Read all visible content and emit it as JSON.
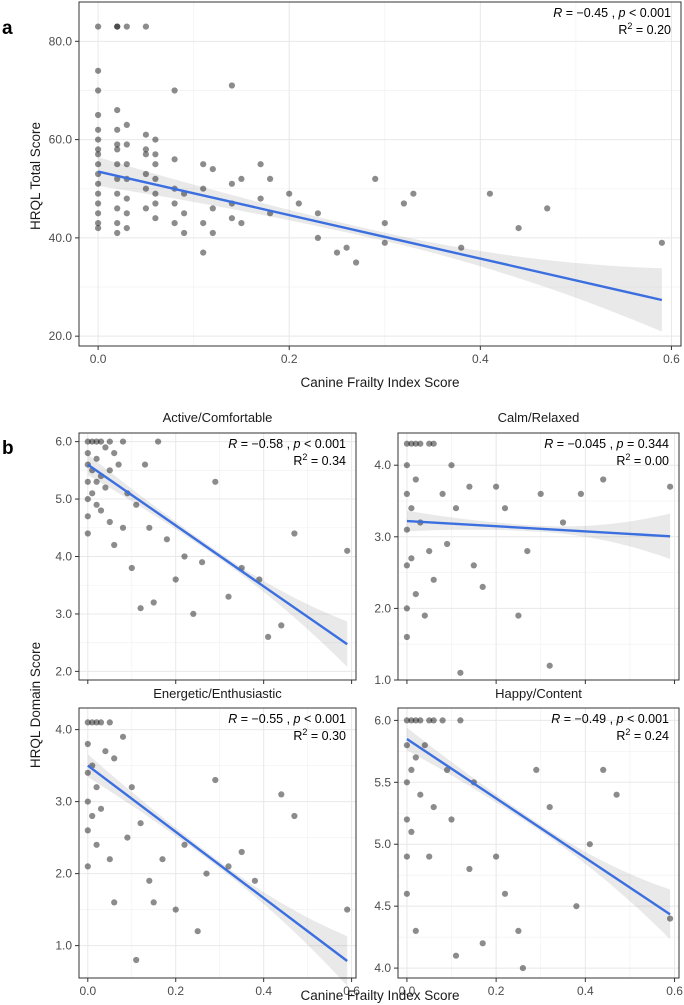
{
  "labels": {
    "panel_a": "a",
    "panel_b": "b"
  },
  "colors": {
    "fit_line": "#3b6fe0",
    "points": "#000000",
    "band": "#999999"
  },
  "chart_data": [
    {
      "id": "a",
      "type": "scatter",
      "title": "",
      "xlabel": "Canine Frailty Index Score",
      "ylabel": "HRQL Total Score",
      "xlim": [
        -0.02,
        0.61
      ],
      "ylim": [
        18,
        88
      ],
      "xticks": [
        0.0,
        0.2,
        0.4,
        0.6
      ],
      "xtick_labels": [
        "0.0",
        "0.2",
        "0.4",
        "0.6"
      ],
      "yticks": [
        20,
        40,
        60,
        80
      ],
      "ytick_labels": [
        "20.0",
        "40.0",
        "60.0",
        "80.0"
      ],
      "stat_r": "R = −0.45 , p < 0.001",
      "stat_r2": "R2 = 0.20",
      "fit": {
        "intercept": 53.5,
        "slope": -44.3,
        "x_range": [
          0.0,
          0.59
        ]
      },
      "x": [
        0,
        0,
        0,
        0,
        0,
        0,
        0,
        0,
        0,
        0,
        0,
        0,
        0,
        0,
        0,
        0,
        0.02,
        0.02,
        0.02,
        0.02,
        0.02,
        0.02,
        0.02,
        0.02,
        0.02,
        0.02,
        0.03,
        0.03,
        0.03,
        0.03,
        0.03,
        0.03,
        0.03,
        0.03,
        0.05,
        0.05,
        0.05,
        0.05,
        0.05,
        0.05,
        0.06,
        0.06,
        0.06,
        0.06,
        0.06,
        0.06,
        0.08,
        0.08,
        0.08,
        0.08,
        0.08,
        0.09,
        0.09,
        0.09,
        0.11,
        0.11,
        0.11,
        0.11,
        0.12,
        0.12,
        0.12,
        0.14,
        0.14,
        0.14,
        0.14,
        0.15,
        0.15,
        0.17,
        0.17,
        0.18,
        0.18,
        0.2,
        0.21,
        0.23,
        0.23,
        0.25,
        0.26,
        0.27,
        0.29,
        0.3,
        0.3,
        0.32,
        0.33,
        0.38,
        0.41,
        0.44,
        0.47,
        0.59,
        0.02,
        0.02,
        0.05,
        0.06
      ],
      "y": [
        83,
        74,
        70,
        65,
        62,
        60,
        58,
        57,
        55,
        53,
        51,
        49,
        47,
        45,
        43,
        42,
        83,
        66,
        62,
        58,
        55,
        52,
        49,
        46,
        43,
        41,
        83,
        63,
        59,
        55,
        52,
        48,
        45,
        42,
        83,
        61,
        57,
        53,
        50,
        46,
        60,
        57,
        55,
        52,
        49,
        47,
        70,
        56,
        50,
        47,
        43,
        49,
        45,
        41,
        55,
        50,
        43,
        37,
        54,
        46,
        41,
        71,
        51,
        47,
        44,
        52,
        43,
        55,
        48,
        52,
        45,
        49,
        47,
        45,
        40,
        37,
        38,
        35,
        52,
        43,
        39,
        47,
        49,
        38,
        49,
        42,
        46,
        39,
        83,
        59,
        58,
        44
      ],
      "n_points_shown": 92
    },
    {
      "id": "b1",
      "type": "scatter",
      "title": "Active/Comfortable",
      "xlim": [
        -0.02,
        0.61
      ],
      "ylim": [
        1.85,
        6.15
      ],
      "xticks": [
        0.0,
        0.2,
        0.4,
        0.6
      ],
      "yticks": [
        2,
        3,
        4,
        5,
        6
      ],
      "ytick_labels": [
        "2.0",
        "3.0",
        "4.0",
        "5.0",
        "6.0"
      ],
      "stat_r": "R = −0.58 , p < 0.001",
      "stat_r2": "R2 = 0.34",
      "fit": {
        "intercept": 5.6,
        "slope": -5.3,
        "x_range": [
          0.0,
          0.59
        ]
      },
      "x": [
        0,
        0,
        0,
        0,
        0,
        0,
        0,
        0.01,
        0.01,
        0.01,
        0.02,
        0.02,
        0.02,
        0.02,
        0.03,
        0.03,
        0.03,
        0.04,
        0.04,
        0.05,
        0.05,
        0.05,
        0.06,
        0.06,
        0.07,
        0.08,
        0.08,
        0.09,
        0.1,
        0.11,
        0.12,
        0.13,
        0.14,
        0.15,
        0.16,
        0.18,
        0.2,
        0.22,
        0.24,
        0.26,
        0.29,
        0.32,
        0.35,
        0.39,
        0.41,
        0.44,
        0.47,
        0.59
      ],
      "y": [
        6,
        5.8,
        5.6,
        5.3,
        5,
        4.7,
        4.4,
        6,
        5.5,
        5.1,
        6,
        5.7,
        5.3,
        4.9,
        6,
        5.4,
        4.8,
        5.9,
        5.2,
        6,
        5.5,
        4.6,
        5.8,
        4.2,
        5.6,
        6,
        4.5,
        5.1,
        3.8,
        4.9,
        3.1,
        5.6,
        4.5,
        3.2,
        6,
        4.3,
        3.6,
        4,
        3,
        3.9,
        5.3,
        3.3,
        3.8,
        3.6,
        2.6,
        2.8,
        4.4,
        4.1
      ],
      "n_points_shown": 48
    },
    {
      "id": "b2",
      "type": "scatter",
      "title": "Calm/Relaxed",
      "xlim": [
        -0.02,
        0.61
      ],
      "ylim": [
        1.0,
        4.45
      ],
      "xticks": [
        0.0,
        0.2,
        0.4,
        0.6
      ],
      "yticks": [
        1,
        2,
        3,
        4
      ],
      "ytick_labels": [
        "1.0",
        "2.0",
        "3.0",
        "4.0"
      ],
      "stat_r": "R = −0.045 , p = 0.344",
      "stat_r2": "R2 = 0.00",
      "fit": {
        "intercept": 3.22,
        "slope": -0.36,
        "x_range": [
          0.0,
          0.59
        ]
      },
      "x": [
        0,
        0,
        0,
        0,
        0,
        0,
        0,
        0.01,
        0.01,
        0.01,
        0.02,
        0.02,
        0.02,
        0.03,
        0.03,
        0.04,
        0.05,
        0.05,
        0.06,
        0.06,
        0.08,
        0.09,
        0.1,
        0.11,
        0.12,
        0.14,
        0.15,
        0.17,
        0.2,
        0.22,
        0.25,
        0.27,
        0.3,
        0.32,
        0.35,
        0.39,
        0.44,
        0.59
      ],
      "y": [
        4.3,
        4,
        3.6,
        3.1,
        2.6,
        2,
        1.6,
        4.3,
        3.4,
        2.7,
        4.3,
        3.8,
        2.2,
        4.3,
        3.2,
        1.9,
        4.3,
        2.8,
        4.3,
        2.4,
        3.6,
        2.9,
        4,
        3.4,
        1.1,
        3.7,
        2.6,
        2.3,
        3.7,
        3.4,
        1.9,
        2.8,
        3.6,
        1.2,
        3.2,
        3.6,
        3.8,
        3.7
      ],
      "n_points_shown": 38
    },
    {
      "id": "b3",
      "type": "scatter",
      "title": "Energetic/Enthusiastic",
      "xlim": [
        -0.02,
        0.61
      ],
      "ylim": [
        0.55,
        4.3
      ],
      "xticks": [
        0.0,
        0.2,
        0.4,
        0.6
      ],
      "xtick_labels": [
        "0.0",
        "0.2",
        "0.4",
        "0.6"
      ],
      "yticks": [
        1,
        2,
        3,
        4
      ],
      "ytick_labels": [
        "1.0",
        "2.0",
        "3.0",
        "4.0"
      ],
      "stat_r": "R = −0.55 , p < 0.001",
      "stat_r2": "R2 = 0.30",
      "fit": {
        "intercept": 3.5,
        "slope": -4.6,
        "x_range": [
          0.0,
          0.59
        ]
      },
      "x": [
        0,
        0,
        0,
        0,
        0,
        0,
        0.01,
        0.01,
        0.01,
        0.02,
        0.02,
        0.02,
        0.03,
        0.03,
        0.04,
        0.05,
        0.05,
        0.06,
        0.06,
        0.08,
        0.09,
        0.1,
        0.11,
        0.12,
        0.14,
        0.15,
        0.17,
        0.2,
        0.22,
        0.25,
        0.27,
        0.29,
        0.32,
        0.35,
        0.38,
        0.44,
        0.47,
        0.59
      ],
      "y": [
        4.1,
        3.8,
        3.4,
        3,
        2.6,
        2.1,
        4.1,
        3.5,
        2.8,
        4.1,
        3.2,
        2.4,
        4.1,
        2.9,
        3.7,
        4.1,
        2.2,
        3.6,
        1.6,
        3.9,
        2.5,
        3.2,
        0.8,
        2.7,
        1.9,
        1.6,
        2.2,
        1.5,
        2.4,
        1.2,
        2,
        3.3,
        2.1,
        2.3,
        1.9,
        3.1,
        2.8,
        1.5
      ],
      "n_points_shown": 38
    },
    {
      "id": "b4",
      "type": "scatter",
      "title": "Happy/Content",
      "xlim": [
        -0.02,
        0.61
      ],
      "ylim": [
        3.92,
        6.1
      ],
      "xticks": [
        0.0,
        0.2,
        0.4,
        0.6
      ],
      "xtick_labels": [
        "0.0",
        "0.2",
        "0.4",
        "0.6"
      ],
      "yticks": [
        4.0,
        4.5,
        5.0,
        5.5,
        6.0
      ],
      "ytick_labels": [
        "4.0",
        "4.5",
        "5.0",
        "5.5",
        "6.0"
      ],
      "stat_r": "R = −0.49 , p < 0.001",
      "stat_r2": "R2 = 0.24",
      "fit": {
        "intercept": 5.85,
        "slope": -2.4,
        "x_range": [
          0.0,
          0.59
        ]
      },
      "x": [
        0,
        0,
        0,
        0,
        0,
        0,
        0.01,
        0.01,
        0.01,
        0.02,
        0.02,
        0.02,
        0.03,
        0.03,
        0.04,
        0.05,
        0.05,
        0.06,
        0.06,
        0.08,
        0.09,
        0.1,
        0.11,
        0.12,
        0.14,
        0.15,
        0.17,
        0.2,
        0.22,
        0.25,
        0.26,
        0.29,
        0.32,
        0.38,
        0.41,
        0.44,
        0.47,
        0.59
      ],
      "y": [
        6,
        5.8,
        5.5,
        5.2,
        4.9,
        4.6,
        6,
        5.6,
        5.1,
        6,
        5.7,
        4.3,
        6,
        5.4,
        5.8,
        6,
        4.9,
        6,
        5.3,
        6,
        5.6,
        5.2,
        4.1,
        6,
        4.8,
        5.5,
        4.2,
        4.9,
        4.6,
        4.3,
        4.0,
        5.6,
        5.3,
        4.5,
        5.0,
        5.6,
        5.4,
        4.4
      ],
      "n_points_shown": 38
    }
  ],
  "shared_axes_b": {
    "xlabel": "Canine Frailty Index Score",
    "ylabel": "HRQL Domain Score"
  }
}
